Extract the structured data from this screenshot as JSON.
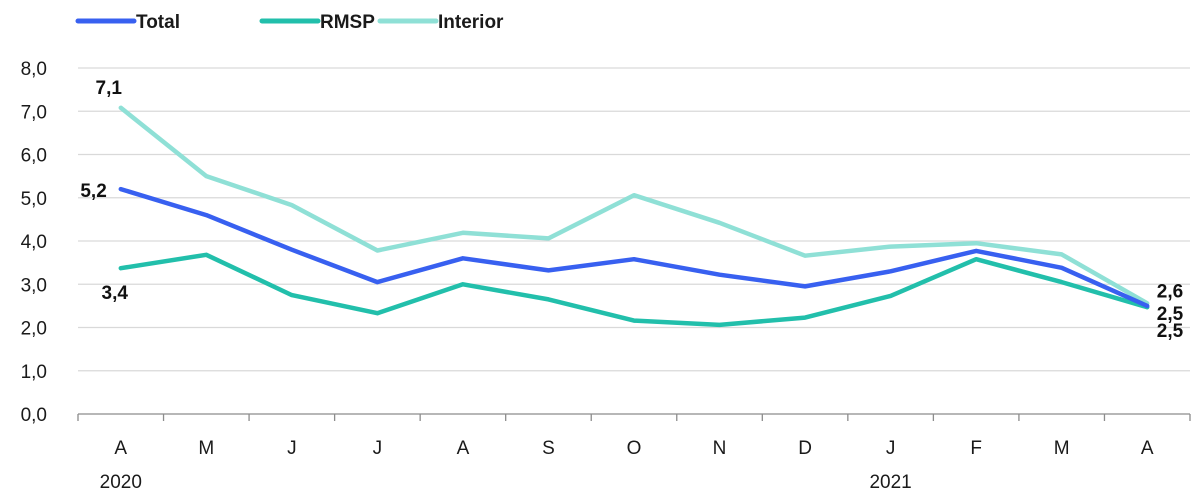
{
  "chart_data": {
    "type": "line",
    "categories": [
      "A",
      "M",
      "J",
      "J",
      "A",
      "S",
      "O",
      "N",
      "D",
      "J",
      "F",
      "M",
      "A"
    ],
    "year_labels": [
      {
        "label": "2020",
        "index": 0
      },
      {
        "label": "2021",
        "index": 9
      }
    ],
    "ylim": [
      0,
      8
    ],
    "yticks": [
      "0,0",
      "1,0",
      "2,0",
      "3,0",
      "4,0",
      "5,0",
      "6,0",
      "7,0",
      "8,0"
    ],
    "grid": true,
    "legend_position": "top-left",
    "series": [
      {
        "name": "Total",
        "color": "#3860f0",
        "values": [
          5.2,
          4.6,
          3.8,
          3.05,
          3.6,
          3.32,
          3.58,
          3.22,
          2.95,
          3.3,
          3.77,
          3.38,
          2.5
        ]
      },
      {
        "name": "RMSP",
        "color": "#22bfab",
        "values": [
          3.37,
          3.68,
          2.75,
          2.33,
          3.0,
          2.65,
          2.16,
          2.06,
          2.23,
          2.73,
          3.58,
          3.05,
          2.47
        ]
      },
      {
        "name": "Interior",
        "color": "#8fe0d6",
        "values": [
          7.08,
          5.5,
          4.83,
          3.78,
          4.19,
          4.06,
          5.06,
          4.42,
          3.66,
          3.87,
          3.95,
          3.69,
          2.56
        ]
      }
    ],
    "annotations": [
      {
        "text": "7,1",
        "series": "Interior",
        "index": 0
      },
      {
        "text": "5,2",
        "series": "Total",
        "index": 0
      },
      {
        "text": "3,4",
        "series": "RMSP",
        "index": 0
      },
      {
        "text": "2,6",
        "series": "Interior",
        "index": 12
      },
      {
        "text": "2,5",
        "series": "Total",
        "index": 12
      },
      {
        "text": "2,5",
        "series": "RMSP",
        "index": 12
      }
    ]
  }
}
